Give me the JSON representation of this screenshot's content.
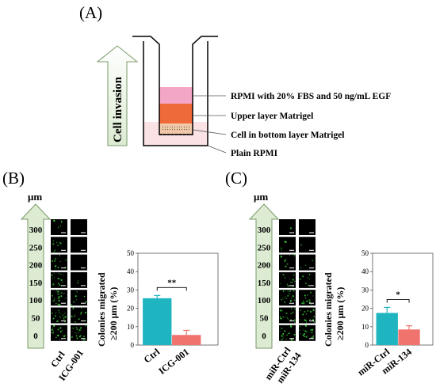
{
  "panels": {
    "A": {
      "label": "(A)",
      "arrow_label": "Cell invasion",
      "layers": [
        {
          "label": "RPMI with 20% FBS and 50 ng/mL EGF",
          "color": "#f4a6c6"
        },
        {
          "label": "Upper layer Matrigel",
          "color": "#ef6a3b"
        },
        {
          "label": "Cell in bottom layer Matrigel",
          "color": "#f2c9a8"
        },
        {
          "label": "Plain RPMI",
          "color": "#fbe2e4"
        }
      ]
    },
    "B": {
      "label": "(B)",
      "unit": "μm",
      "distance_ticks": [
        "300",
        "250",
        "200",
        "150",
        "100",
        "50",
        "0"
      ],
      "column_labels": [
        "Ctrl",
        "ICG-001"
      ]
    },
    "C": {
      "label": "(C)",
      "unit": "μm",
      "distance_ticks": [
        "300",
        "250",
        "200",
        "150",
        "100",
        "50",
        "0"
      ],
      "column_labels": [
        "miR-Ctrl",
        "miR-134"
      ]
    }
  },
  "chart_data": [
    {
      "type": "bar",
      "panel": "B",
      "categories": [
        "Ctrl",
        "ICG-001"
      ],
      "values": [
        25.5,
        5.5
      ],
      "errors": [
        1.5,
        2.5
      ],
      "colors": [
        "#1fb5c0",
        "#f0736e"
      ],
      "ylabel": "Colonies migrated ≥200 μm (%)",
      "ylim": [
        0,
        50
      ],
      "yticks": [
        "0",
        "10",
        "20",
        "30",
        "40",
        "50"
      ],
      "significance": "**"
    },
    {
      "type": "bar",
      "panel": "C",
      "categories": [
        "miR-Ctrl",
        "miR-134"
      ],
      "values": [
        17.5,
        8.5
      ],
      "errors": [
        3.0,
        2.0
      ],
      "colors": [
        "#1fb5c0",
        "#f0736e"
      ],
      "ylabel": "Colonies migrated ≥200 μm (%)",
      "ylim": [
        0,
        50
      ],
      "yticks": [
        "0",
        "10",
        "20",
        "30",
        "40",
        "50"
      ],
      "significance": "*"
    }
  ]
}
